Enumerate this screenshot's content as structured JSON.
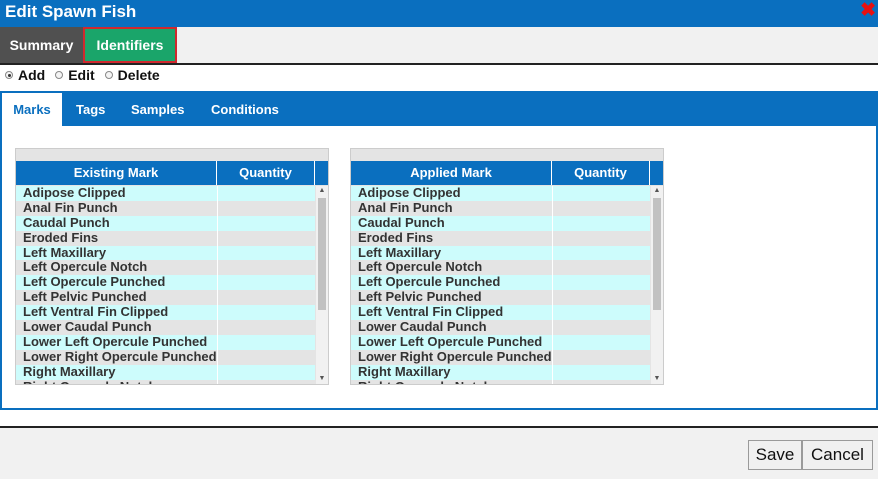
{
  "window": {
    "title": "Edit Spawn Fish",
    "close_glyph": "✖"
  },
  "tabs": {
    "summary": "Summary",
    "identifiers": "Identifiers"
  },
  "mode": {
    "options": [
      {
        "label": "Add",
        "selected": true
      },
      {
        "label": "Edit",
        "selected": false
      },
      {
        "label": "Delete",
        "selected": false
      }
    ]
  },
  "subtabs": [
    "Marks",
    "Tags",
    "Samples",
    "Conditions"
  ],
  "existing_grid": {
    "col1": "Existing Mark",
    "col2": "Quantity",
    "rows": [
      "Adipose Clipped",
      "Anal Fin Punch",
      "Caudal Punch",
      "Eroded Fins",
      "Left Maxillary",
      "Left Opercule Notch",
      "Left Opercule Punched",
      "Left Pelvic Punched",
      "Left Ventral Fin Clipped",
      "Lower Caudal Punch",
      "Lower Left Opercule Punched",
      "Lower Right Opercule Punched",
      "Right Maxillary",
      "Right Opercule Notch"
    ]
  },
  "applied_grid": {
    "col1": "Applied Mark",
    "col2": "Quantity",
    "rows": [
      "Adipose Clipped",
      "Anal Fin Punch",
      "Caudal Punch",
      "Eroded Fins",
      "Left Maxillary",
      "Left Opercule Notch",
      "Left Opercule Punched",
      "Left Pelvic Punched",
      "Left Ventral Fin Clipped",
      "Lower Caudal Punch",
      "Lower Left Opercule Punched",
      "Lower Right Opercule Punched",
      "Right Maxillary",
      "Right Opercule Notch"
    ]
  },
  "buttons": {
    "save": "Save",
    "cancel": "Cancel"
  },
  "colors": {
    "accent": "#0a6fbf",
    "identifiers_tab": "#1aa56a",
    "summary_tab": "#505050",
    "row_highlight": "#cdfcfc",
    "highlight_border": "#d0282e"
  }
}
